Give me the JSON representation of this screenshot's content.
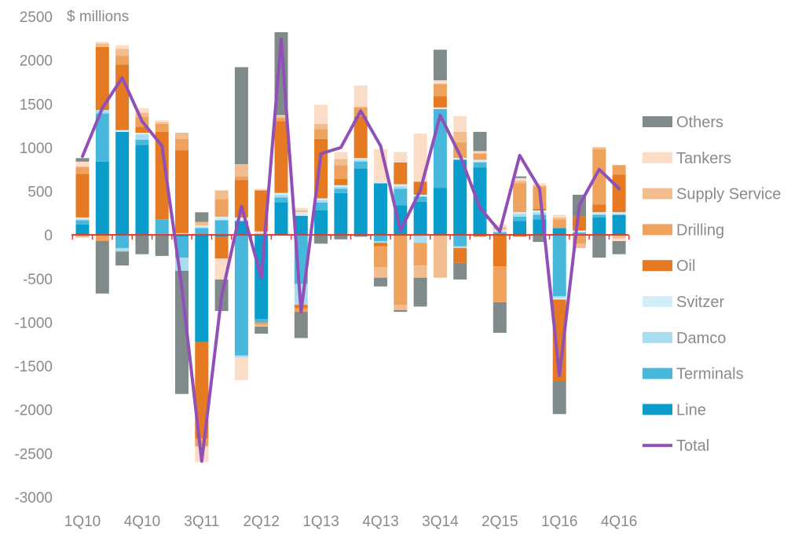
{
  "chart_data": {
    "type": "bar",
    "stacked": true,
    "unit_label": "$ millions",
    "ylim": [
      -3000,
      2500
    ],
    "yticks": [
      -3000,
      -2500,
      -2000,
      -1500,
      -1000,
      -500,
      0,
      500,
      1000,
      1500,
      2000,
      2500
    ],
    "categories": [
      "1Q10",
      "2Q10",
      "3Q10",
      "4Q10",
      "1Q11",
      "2Q11",
      "3Q11",
      "4Q11",
      "1Q12",
      "2Q12",
      "3Q12",
      "4Q12",
      "1Q13",
      "2Q13",
      "3Q13",
      "4Q13",
      "1Q14",
      "2Q14",
      "3Q14",
      "4Q14",
      "1Q15",
      "2Q15",
      "3Q15",
      "4Q15",
      "1Q16",
      "2Q16",
      "3Q16",
      "4Q16"
    ],
    "xtick_labels": [
      "1Q10",
      "4Q10",
      "3Q11",
      "2Q12",
      "1Q13",
      "4Q13",
      "3Q14",
      "2Q15",
      "1Q16",
      "4Q16"
    ],
    "xtick_indices": [
      0,
      3,
      6,
      9,
      12,
      15,
      18,
      21,
      24,
      27
    ],
    "series": [
      {
        "name": "Line",
        "color": "#0a9cca",
        "values": [
          120,
          840,
          1180,
          1030,
          0,
          -20,
          -1220,
          -20,
          160,
          -960,
          370,
          220,
          280,
          480,
          760,
          590,
          340,
          380,
          540,
          860,
          770,
          0,
          160,
          180,
          80,
          0,
          200,
          230
        ]
      },
      {
        "name": "Terminals",
        "color": "#47b8dc",
        "values": [
          50,
          550,
          -150,
          60,
          180,
          -240,
          80,
          170,
          -1380,
          -40,
          60,
          -560,
          90,
          50,
          80,
          -70,
          190,
          60,
          900,
          -130,
          60,
          30,
          50,
          50,
          -700,
          30,
          30,
          0
        ]
      },
      {
        "name": "Damco",
        "color": "#a8dcee",
        "values": [
          10,
          40,
          -40,
          60,
          0,
          -150,
          10,
          0,
          -20,
          20,
          30,
          -240,
          30,
          20,
          20,
          -20,
          30,
          -90,
          0,
          -20,
          10,
          10,
          30,
          30,
          -20,
          0,
          10,
          10
        ]
      },
      {
        "name": "Svitzer",
        "color": "#d2eef7",
        "values": [
          20,
          0,
          20,
          20,
          0,
          20,
          20,
          40,
          40,
          20,
          20,
          40,
          20,
          20,
          20,
          20,
          20,
          20,
          20,
          20,
          20,
          20,
          20,
          20,
          -20,
          20,
          20,
          20
        ]
      },
      {
        "name": "Oil",
        "color": "#e57a23",
        "values": [
          500,
          720,
          750,
          70,
          1000,
          950,
          -1110,
          -250,
          430,
          470,
          820,
          -40,
          680,
          70,
          480,
          -40,
          250,
          150,
          130,
          -170,
          -20,
          -360,
          -20,
          20,
          -930,
          160,
          90,
          430
        ]
      },
      {
        "name": "Drilling",
        "color": "#eea25d",
        "values": [
          80,
          -70,
          100,
          110,
          90,
          130,
          -90,
          200,
          40,
          -30,
          40,
          -40,
          110,
          160,
          100,
          -240,
          -800,
          -260,
          140,
          180,
          70,
          -410,
          330,
          250,
          100,
          -100,
          630,
          110
        ]
      },
      {
        "name": "Supply Service",
        "color": "#f2bc8e",
        "values": [
          -30,
          40,
          80,
          50,
          20,
          70,
          40,
          100,
          140,
          -20,
          20,
          20,
          60,
          70,
          10,
          -120,
          -60,
          -140,
          -490,
          120,
          10,
          30,
          30,
          20,
          20,
          -50,
          20,
          -40
        ]
      },
      {
        "name": "Tankers",
        "color": "#fbdcc6",
        "values": [
          60,
          20,
          40,
          50,
          20,
          0,
          -180,
          -240,
          -260,
          20,
          10,
          30,
          220,
          80,
          240,
          370,
          120,
          550,
          40,
          180,
          20,
          30,
          30,
          20,
          30,
          0,
          10,
          -30
        ]
      },
      {
        "name": "Others",
        "color": "#7f8b8b",
        "values": [
          40,
          -600,
          -160,
          -220,
          -240,
          -1410,
          110,
          -360,
          1110,
          -80,
          950,
          -300,
          -100,
          -50,
          -20,
          -100,
          -20,
          -330,
          350,
          -190,
          220,
          -350,
          20,
          -80,
          -380,
          250,
          -260,
          -150
        ]
      }
    ],
    "total": {
      "name": "Total",
      "color": "#9150b7",
      "values": [
        900,
        1450,
        1800,
        1300,
        1020,
        -600,
        -2590,
        -700,
        330,
        -490,
        2240,
        -880,
        930,
        1000,
        1420,
        1020,
        50,
        510,
        1370,
        910,
        310,
        40,
        910,
        530,
        -1610,
        340,
        750,
        530
      ]
    },
    "legend": [
      "Others",
      "Tankers",
      "Supply Service",
      "Drilling",
      "Oil",
      "Svitzer",
      "Damco",
      "Terminals",
      "Line",
      "Total"
    ],
    "zero_line_color": "#e23a2e"
  }
}
